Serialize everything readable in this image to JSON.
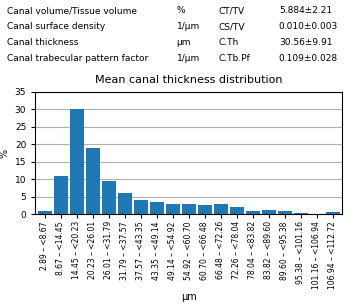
{
  "chart_data": {
    "type": "bar",
    "title": "Mean canal thickness distribution",
    "xlabel": "μm",
    "ylabel": "%",
    "table": [
      [
        "Canal volume/Tissue volume",
        "%",
        "CT/TV",
        "5.884±2.21"
      ],
      [
        "Canal surface density",
        "1/μm",
        "CS/TV",
        "0.010±0.003"
      ],
      [
        "Canal thickness",
        "μm",
        "C.Th",
        "30.56±9.91"
      ],
      [
        "Canal trabecular pattern factor",
        "1/μm",
        "C.Tb.Pf",
        "0.109±0.028"
      ]
    ],
    "categories": [
      "2.89 – <8.67",
      "8.67 – <14.45",
      "14.45 – <20.23",
      "20.23 – <26.01",
      "26.01 – <31.79",
      "31.79 – <37.57",
      "37.57 – <43.35",
      "43.35 – <49.14",
      "49.14 – <54.92",
      "54.92 – <60.70",
      "60.70 – <66.48",
      "66.48 – <72.26",
      "72.26 – <78.04",
      "78.04 – <83.82",
      "83.82 – <89.60",
      "89.60 – <95.38",
      "95.38 – <101.16",
      "101.16 – <106.94",
      "106.94 – <112.72"
    ],
    "values": [
      1,
      11,
      30,
      19,
      9.5,
      6,
      4,
      3.5,
      3,
      3,
      2.5,
      3,
      2,
      1,
      1.2,
      1,
      0.4,
      0.2,
      0.5
    ],
    "ylim": [
      0,
      35
    ],
    "yticks": [
      0,
      5,
      10,
      15,
      20,
      25,
      30,
      35
    ],
    "grid": true
  }
}
